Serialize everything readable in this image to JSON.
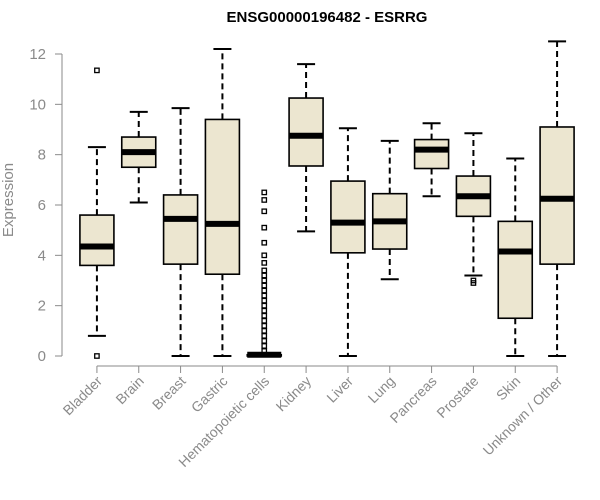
{
  "chart_data": {
    "type": "boxplot",
    "title": "ENSG00000196482 - ESRRG",
    "xlabel": "",
    "ylabel": "Expression",
    "ylim": [
      0,
      12.5
    ],
    "yticks": [
      0,
      2,
      4,
      6,
      8,
      10,
      12
    ],
    "categories": [
      "Bladder",
      "Brain",
      "Breast",
      "Gastric",
      "Hematopoietic cells",
      "Kidney",
      "Liver",
      "Lung",
      "Pancreas",
      "Prostate",
      "Skin",
      "Unknown / Other"
    ],
    "boxes": [
      {
        "name": "Bladder",
        "min": 0.8,
        "q1": 3.6,
        "median": 4.35,
        "q3": 5.6,
        "max": 8.3,
        "outliers": [
          11.35,
          0.0
        ]
      },
      {
        "name": "Brain",
        "min": 6.1,
        "q1": 7.5,
        "median": 8.1,
        "q3": 8.7,
        "max": 9.7,
        "outliers": []
      },
      {
        "name": "Breast",
        "min": 0.0,
        "q1": 3.65,
        "median": 5.45,
        "q3": 6.4,
        "max": 9.85,
        "outliers": []
      },
      {
        "name": "Gastric",
        "min": 0.0,
        "q1": 3.25,
        "median": 5.25,
        "q3": 9.4,
        "max": 12.2,
        "outliers": []
      },
      {
        "name": "Hematopoietic cells",
        "min": 0.0,
        "q1": 0.0,
        "median": 0.05,
        "q3": 0.05,
        "max": 0.05,
        "outliers": [
          6.5,
          6.2,
          5.75,
          5.1,
          4.5,
          4.0,
          3.7,
          3.4,
          3.2,
          3.0,
          2.8,
          2.6,
          2.4,
          2.2,
          2.0,
          1.8,
          1.6,
          1.4,
          1.2,
          1.0,
          0.8,
          0.6,
          0.4,
          0.2
        ]
      },
      {
        "name": "Kidney",
        "min": 4.95,
        "q1": 7.55,
        "median": 8.75,
        "q3": 10.25,
        "max": 11.6,
        "outliers": []
      },
      {
        "name": "Liver",
        "min": 0.0,
        "q1": 4.1,
        "median": 5.3,
        "q3": 6.95,
        "max": 9.05,
        "outliers": []
      },
      {
        "name": "Lung",
        "min": 3.05,
        "q1": 4.25,
        "median": 5.35,
        "q3": 6.45,
        "max": 8.55,
        "outliers": []
      },
      {
        "name": "Pancreas",
        "min": 6.35,
        "q1": 7.45,
        "median": 8.2,
        "q3": 8.6,
        "max": 9.25,
        "outliers": []
      },
      {
        "name": "Prostate",
        "min": 3.2,
        "q1": 5.55,
        "median": 6.35,
        "q3": 7.15,
        "max": 8.85,
        "outliers": [
          3.0,
          2.9
        ]
      },
      {
        "name": "Skin",
        "min": 0.0,
        "q1": 1.5,
        "median": 4.15,
        "q3": 5.35,
        "max": 7.85,
        "outliers": []
      },
      {
        "name": "Unknown / Other",
        "min": 0.0,
        "q1": 3.65,
        "median": 6.25,
        "q3": 9.1,
        "max": 12.5,
        "outliers": []
      }
    ]
  }
}
